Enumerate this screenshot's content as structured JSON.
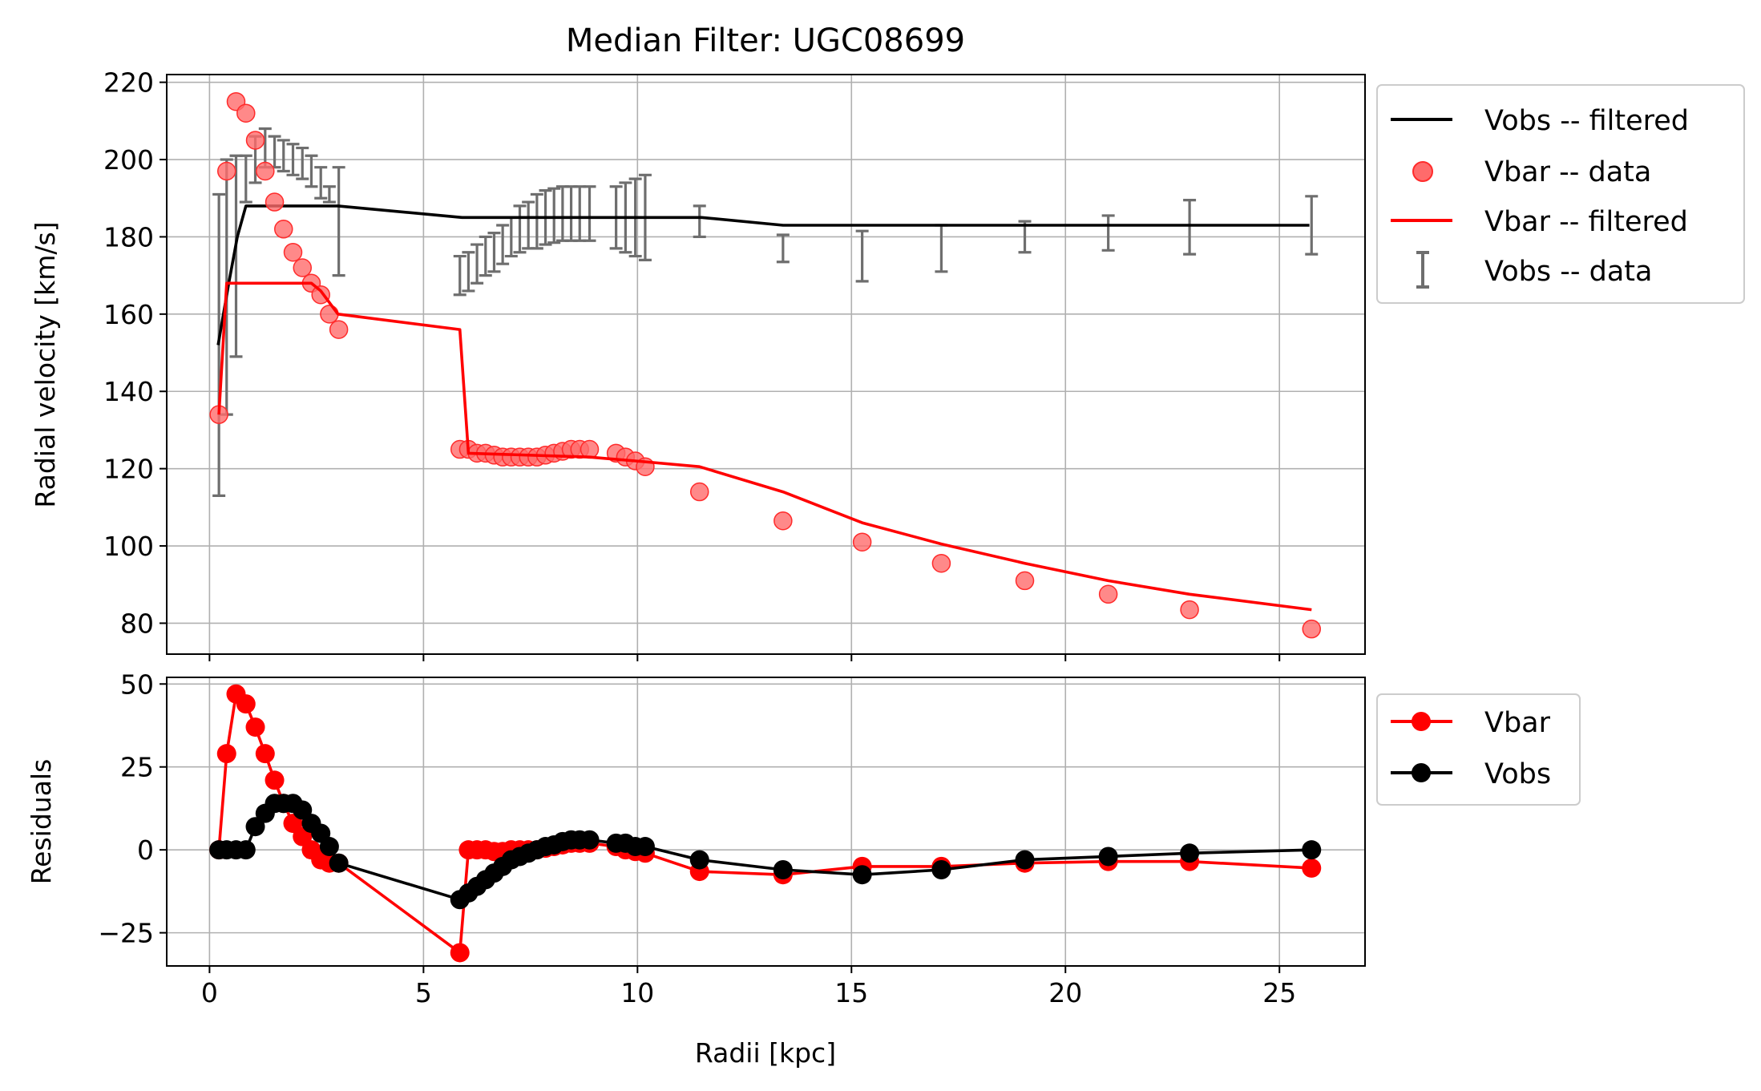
{
  "figure": {
    "title": "Median Filter: UGC08699",
    "xlabel": "Radii [kpc]"
  },
  "colors": {
    "black": "#000000",
    "red": "#ff0000",
    "marker_red": "#ff6b6b",
    "errbar": "#6e6e6e",
    "grid": "#b0b0b0"
  },
  "chart_data": [
    {
      "type": "line",
      "ylabel": "Radial velocity [km/s]",
      "xlim": [
        -1,
        27
      ],
      "ylim": [
        72,
        222
      ],
      "xticks": [
        0,
        5,
        10,
        15,
        20,
        25
      ],
      "yticks": [
        80,
        100,
        120,
        140,
        160,
        180,
        200,
        220
      ],
      "grid": true,
      "legend_position": "outside-right-top",
      "legend": [
        "Vobs -- filtered",
        "Vbar -- data",
        "Vbar -- filtered",
        "Vobs -- data"
      ],
      "series": [
        {
          "name": "Vobs -- filtered",
          "kind": "line",
          "color": "#000000",
          "x": [
            0.2,
            0.45,
            0.65,
            0.85,
            3.0,
            5.9,
            11.5,
            13.4,
            25.7
          ],
          "y": [
            152,
            168,
            180,
            188,
            188,
            185,
            185,
            183,
            183
          ]
        },
        {
          "name": "Vbar -- data",
          "kind": "scatter",
          "color": "#ff0000",
          "x": [
            0.22,
            0.4,
            0.62,
            0.85,
            1.07,
            1.3,
            1.52,
            1.73,
            1.95,
            2.17,
            2.38,
            2.6,
            2.8,
            3.02,
            5.85,
            6.05,
            6.25,
            6.45,
            6.65,
            6.85,
            7.05,
            7.25,
            7.45,
            7.65,
            7.85,
            8.05,
            8.25,
            8.45,
            8.65,
            8.88,
            9.5,
            9.72,
            9.95,
            10.18,
            11.45,
            13.4,
            15.25,
            17.1,
            19.05,
            21.0,
            22.9,
            25.75
          ],
          "y": [
            134,
            197,
            215,
            212,
            205,
            197,
            189,
            182,
            176,
            172,
            168,
            165,
            160,
            156,
            125,
            125,
            124,
            124,
            123.5,
            123,
            123,
            123,
            123,
            123,
            123.5,
            124,
            124.5,
            125,
            125,
            125,
            124,
            123,
            122,
            120.5,
            114,
            106.5,
            101,
            95.5,
            91,
            87.5,
            83.5,
            78.5
          ]
        },
        {
          "name": "Vbar -- filtered",
          "kind": "line",
          "color": "#ff0000",
          "x": [
            0.22,
            0.4,
            0.62,
            2.38,
            2.6,
            3.0,
            5.85,
            6.05,
            8.88,
            9.95,
            11.45,
            13.4,
            15.25,
            17.1,
            19.05,
            21.0,
            22.9,
            25.75
          ],
          "y": [
            134,
            168,
            168,
            168,
            166,
            160,
            156,
            124,
            123,
            122,
            120.5,
            114,
            106,
            100.5,
            95.5,
            91,
            87.5,
            83.5
          ]
        },
        {
          "name": "Vobs -- data",
          "kind": "errorbar",
          "color": "#6e6e6e",
          "x": [
            0.22,
            0.4,
            0.62,
            0.85,
            1.07,
            1.3,
            1.52,
            1.73,
            1.95,
            2.17,
            2.38,
            2.6,
            2.8,
            3.02,
            5.85,
            6.05,
            6.25,
            6.45,
            6.65,
            6.85,
            7.05,
            7.25,
            7.45,
            7.65,
            7.85,
            8.05,
            8.25,
            8.45,
            8.65,
            8.88,
            9.5,
            9.72,
            9.95,
            10.18,
            11.45,
            13.4,
            15.25,
            17.1,
            19.05,
            21.0,
            22.9,
            25.75
          ],
          "y": [
            152,
            167,
            175,
            195,
            200,
            203,
            202,
            201,
            200,
            199,
            197,
            194,
            191,
            184,
            170,
            171,
            173,
            175,
            176,
            178,
            180,
            182,
            183,
            184,
            185,
            185.5,
            186,
            186,
            186,
            186,
            185,
            185,
            185,
            185,
            184,
            177,
            175,
            177,
            180,
            181,
            182.5,
            183
          ],
          "yerr": [
            39,
            33,
            26,
            6,
            6,
            5,
            4,
            4,
            4,
            4,
            4,
            4,
            2,
            14,
            5,
            5,
            5,
            5,
            5,
            5,
            5,
            6,
            6,
            7,
            7,
            7,
            7,
            7,
            7,
            7,
            8,
            9,
            10,
            11,
            4,
            3.5,
            6.5,
            6,
            4,
            4.5,
            7,
            7.5
          ]
        }
      ]
    },
    {
      "type": "line",
      "ylabel": "Residuals",
      "xlim": [
        -1,
        27
      ],
      "ylim": [
        -35,
        52
      ],
      "xticks": [
        0,
        5,
        10,
        15,
        20,
        25
      ],
      "yticks": [
        -25,
        0,
        25,
        50
      ],
      "grid": true,
      "legend_position": "outside-right-top",
      "legend": [
        "Vbar",
        "Vobs"
      ],
      "series": [
        {
          "name": "Vbar",
          "kind": "line-marker",
          "color": "#ff0000",
          "x": [
            0.22,
            0.4,
            0.62,
            0.85,
            1.07,
            1.3,
            1.52,
            1.73,
            1.95,
            2.17,
            2.38,
            2.6,
            2.8,
            3.02,
            5.85,
            6.05,
            6.25,
            6.45,
            6.65,
            6.85,
            7.05,
            7.25,
            7.45,
            7.65,
            7.85,
            8.05,
            8.25,
            8.45,
            8.65,
            8.88,
            9.5,
            9.72,
            9.95,
            10.18,
            11.45,
            13.4,
            15.25,
            17.1,
            19.05,
            21.0,
            22.9,
            25.75
          ],
          "y": [
            0,
            29,
            47,
            44,
            37,
            29,
            21,
            14,
            8,
            4,
            0,
            -3,
            -4,
            -4,
            -31,
            0,
            0,
            0,
            -0.5,
            -0.5,
            0,
            0,
            0,
            0,
            0.5,
            1,
            1.5,
            2,
            2,
            2,
            1,
            0,
            -0.5,
            -1,
            -6.5,
            -7.5,
            -5,
            -5,
            -4,
            -3.5,
            -3.5,
            -5.5
          ]
        },
        {
          "name": "Vobs",
          "kind": "line-marker",
          "color": "#000000",
          "x": [
            0.22,
            0.4,
            0.62,
            0.85,
            1.07,
            1.3,
            1.52,
            1.73,
            1.95,
            2.17,
            2.38,
            2.6,
            2.8,
            3.02,
            5.85,
            6.05,
            6.25,
            6.45,
            6.65,
            6.85,
            7.05,
            7.25,
            7.45,
            7.65,
            7.85,
            8.05,
            8.25,
            8.45,
            8.65,
            8.88,
            9.5,
            9.72,
            9.95,
            10.18,
            11.45,
            13.4,
            15.25,
            17.1,
            19.05,
            21.0,
            22.9,
            25.75
          ],
          "y": [
            0,
            0,
            0,
            0,
            7,
            11,
            14,
            14,
            14,
            12,
            8,
            5,
            1,
            -4,
            -15,
            -13,
            -11,
            -9,
            -7,
            -5,
            -3,
            -2,
            -1,
            0,
            1,
            1.5,
            2.5,
            3,
            3,
            3,
            2,
            2,
            1,
            1,
            -3,
            -6,
            -7.5,
            -6,
            -3,
            -2,
            -1,
            0
          ]
        }
      ]
    }
  ]
}
